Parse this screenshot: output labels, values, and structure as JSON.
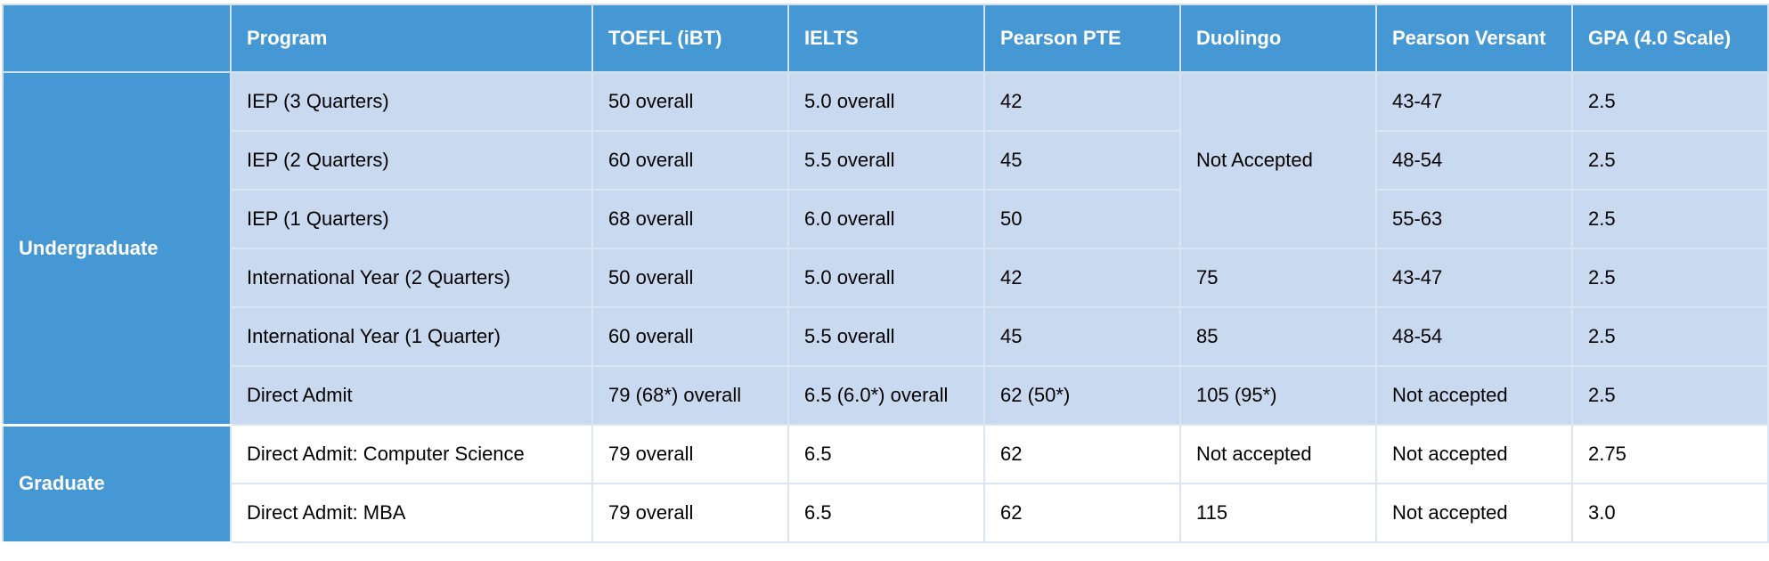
{
  "table": {
    "headers": {
      "group": "",
      "program": "Program",
      "toefl": "TOEFL (iBT)",
      "ielts": "IELTS",
      "pte": "Pearson PTE",
      "duolingo": "Duolingo",
      "versant": "Pearson Versant",
      "gpa": "GPA (4.0 Scale)"
    },
    "groups": {
      "undergraduate": "Undergraduate",
      "graduate": "Graduate"
    },
    "iep_duolingo_merged": "Not Accepted",
    "rows": [
      {
        "program": "IEP (3 Quarters)",
        "toefl": "50 overall",
        "ielts": "5.0 overall",
        "pte": "42",
        "duolingo": "",
        "versant": "43-47",
        "gpa": "2.5"
      },
      {
        "program": "IEP (2 Quarters)",
        "toefl": "60 overall",
        "ielts": "5.5 overall",
        "pte": "45",
        "duolingo": "",
        "versant": "48-54",
        "gpa": "2.5"
      },
      {
        "program": "IEP (1 Quarters)",
        "toefl": "68 overall",
        "ielts": "6.0 overall",
        "pte": "50",
        "duolingo": "",
        "versant": "55-63",
        "gpa": "2.5"
      },
      {
        "program": "International Year (2 Quarters)",
        "toefl": "50 overall",
        "ielts": "5.0 overall",
        "pte": "42",
        "duolingo": "75",
        "versant": "43-47",
        "gpa": "2.5"
      },
      {
        "program": "International Year (1 Quarter)",
        "toefl": "60 overall",
        "ielts": "5.5 overall",
        "pte": "45",
        "duolingo": "85",
        "versant": "48-54",
        "gpa": "2.5"
      },
      {
        "program": "Direct Admit",
        "toefl": "79 (68*) overall",
        "ielts": "6.5 (6.0*) overall",
        "pte": "62 (50*)",
        "duolingo": "105 (95*)",
        "versant": "Not accepted",
        "gpa": "2.5"
      },
      {
        "program": "Direct Admit: Computer Science",
        "toefl": "79 overall",
        "ielts": "6.5",
        "pte": "62",
        "duolingo": "Not accepted",
        "versant": "Not accepted",
        "gpa": "2.75"
      },
      {
        "program": "Direct Admit: MBA",
        "toefl": "79 overall",
        "ielts": "6.5",
        "pte": "62",
        "duolingo": "115",
        "versant": "Not accepted",
        "gpa": "3.0"
      }
    ],
    "colors": {
      "header_bg": "#4698d4",
      "undergrad_row_bg": "#c9d9ef",
      "grad_row_bg": "#ffffff",
      "grid_line": "#dbe6f3"
    }
  }
}
